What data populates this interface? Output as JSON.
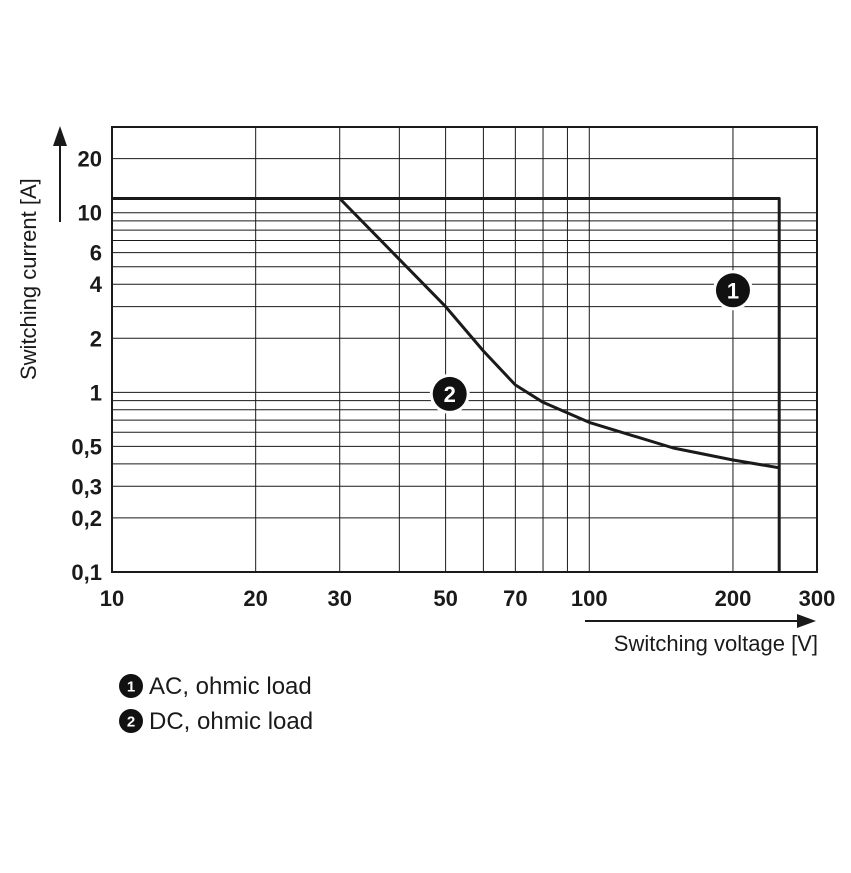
{
  "chart_data": {
    "type": "line",
    "x_scale": "log",
    "y_scale": "log",
    "xlim": [
      10,
      300
    ],
    "ylim": [
      0.1,
      30
    ],
    "grid": true,
    "xlabel": "Switching voltage [V]",
    "ylabel": "Switching current [A]",
    "x_ticks": [
      {
        "value": 10,
        "label": "10"
      },
      {
        "value": 20,
        "label": "20"
      },
      {
        "value": 30,
        "label": "30"
      },
      {
        "value": 50,
        "label": "50"
      },
      {
        "value": 70,
        "label": "70"
      },
      {
        "value": 100,
        "label": "100"
      },
      {
        "value": 200,
        "label": "200"
      },
      {
        "value": 300,
        "label": "300"
      }
    ],
    "y_ticks": [
      {
        "value": 0.1,
        "label": "0,1"
      },
      {
        "value": 0.2,
        "label": "0,2"
      },
      {
        "value": 0.3,
        "label": "0,3"
      },
      {
        "value": 0.5,
        "label": "0,5"
      },
      {
        "value": 1,
        "label": "1"
      },
      {
        "value": 2,
        "label": "2"
      },
      {
        "value": 4,
        "label": "4"
      },
      {
        "value": 6,
        "label": "6"
      },
      {
        "value": 10,
        "label": "10"
      },
      {
        "value": 20,
        "label": "20"
      }
    ],
    "x_gridlines": [
      10,
      20,
      30,
      40,
      50,
      60,
      70,
      80,
      90,
      100,
      200,
      300
    ],
    "y_gridlines": [
      0.1,
      0.2,
      0.3,
      0.4,
      0.5,
      0.6,
      0.7,
      0.8,
      0.9,
      1,
      2,
      3,
      4,
      5,
      6,
      7,
      8,
      9,
      10,
      20,
      30
    ],
    "series": [
      {
        "name": "AC, ohmic load",
        "marker": "1",
        "marker_at": [
          200,
          3.7
        ],
        "x": [
          10,
          250,
          250
        ],
        "y": [
          12,
          12,
          0.1
        ]
      },
      {
        "name": "DC, ohmic load",
        "marker": "2",
        "marker_at": [
          51,
          0.98
        ],
        "x": [
          30,
          40,
          50,
          60,
          70,
          80,
          100,
          150,
          200,
          250
        ],
        "y": [
          12,
          5.5,
          3,
          1.7,
          1.1,
          0.88,
          0.68,
          0.49,
          0.42,
          0.38
        ]
      }
    ],
    "legend": {
      "position": "bottom-left",
      "items": [
        {
          "marker": "1",
          "label": "AC, ohmic load"
        },
        {
          "marker": "2",
          "label": "DC, ohmic load"
        }
      ]
    },
    "colors": {
      "line": "#1a1a1a",
      "grid": "#1a1a1a",
      "marker_fill": "#111111"
    }
  }
}
